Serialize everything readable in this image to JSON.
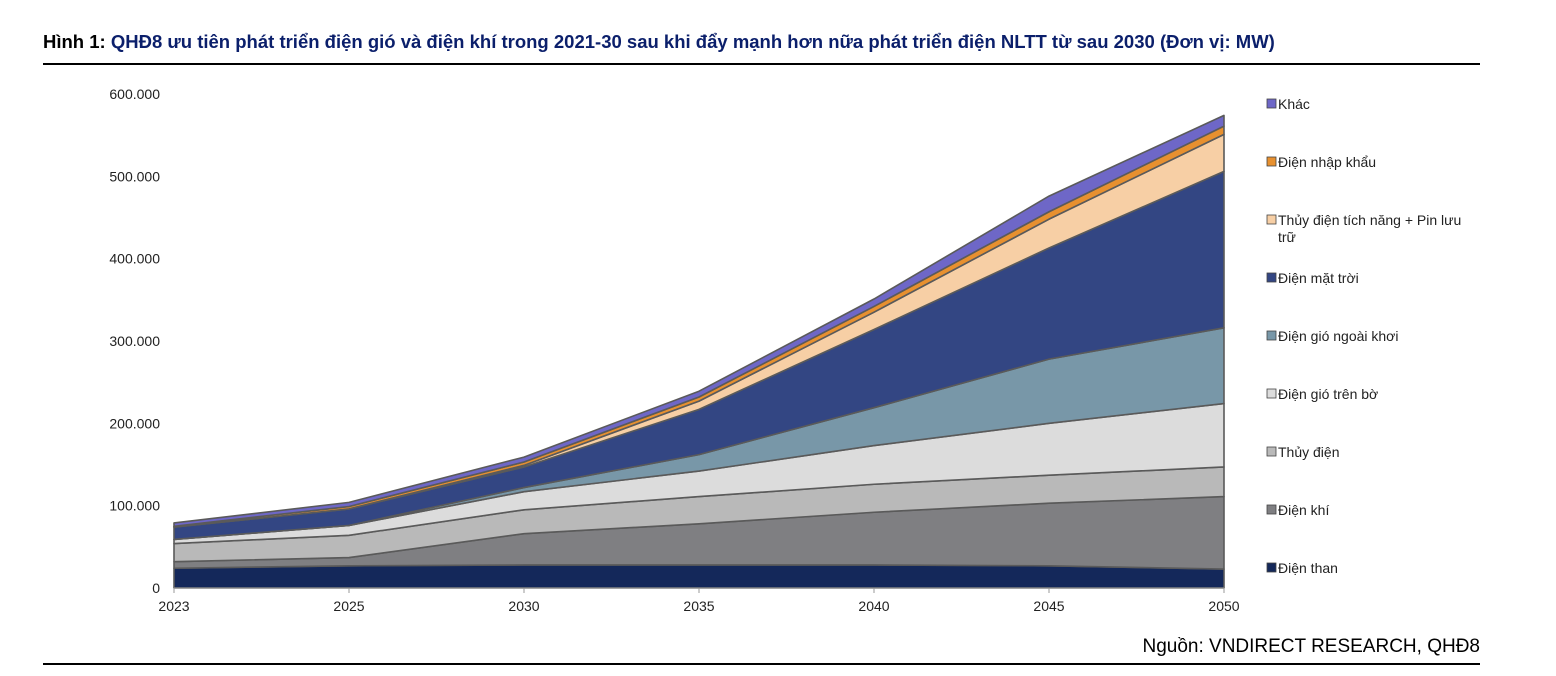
{
  "figure": {
    "label": "Hình 1:",
    "title": "QHĐ8 ưu tiên phát triển điện gió và điện khí trong 2021-30 sau khi đẩy mạnh hơn nữa phát triển điện NLTT từ sau 2030 (Đơn vị: MW)",
    "source": "Nguồn: VNDIRECT RESEARCH, QHĐ8"
  },
  "chart_data": {
    "type": "area",
    "stacked": true,
    "x": [
      "2023",
      "2025",
      "2030",
      "2035",
      "2040",
      "2045",
      "2050"
    ],
    "yticks": [
      "0",
      "100.000",
      "200.000",
      "300.000",
      "400.000",
      "500.000",
      "600.000"
    ],
    "ylim": [
      0,
      600000
    ],
    "legend_position": "right",
    "series": [
      {
        "name": "Điện than",
        "color": "#14285a",
        "values": [
          24000,
          27000,
          28000,
          28000,
          28000,
          27000,
          23000
        ]
      },
      {
        "name": "Điện khí",
        "color": "#7f7f82",
        "values": [
          8000,
          10000,
          38000,
          50000,
          64000,
          76000,
          88000
        ]
      },
      {
        "name": "Thủy điện",
        "color": "#b9b9b9",
        "values": [
          22000,
          27000,
          29000,
          33000,
          34000,
          34000,
          36000
        ]
      },
      {
        "name": "Điện gió trên bờ",
        "color": "#dcdcdc",
        "values": [
          5000,
          12000,
          22000,
          31000,
          47000,
          63000,
          77000
        ]
      },
      {
        "name": "Điện gió ngoài khơi",
        "color": "#7897a8",
        "values": [
          0,
          0,
          5000,
          20000,
          46000,
          78000,
          92000
        ]
      },
      {
        "name": "Điện mặt trời",
        "color": "#334683",
        "values": [
          15000,
          20000,
          25000,
          55000,
          95000,
          135000,
          190000
        ]
      },
      {
        "name": "Thủy điện tích năng + Pin lưu trữ",
        "color": "#f7cfa5",
        "values": [
          0,
          0,
          2000,
          10000,
          21000,
          35000,
          45000
        ]
      },
      {
        "name": "Điện nhập khẩu",
        "color": "#e7902f",
        "values": [
          1000,
          3000,
          4000,
          5000,
          7000,
          9000,
          10000
        ]
      },
      {
        "name": "Khác",
        "color": "#6e67c7",
        "values": [
          4000,
          5000,
          6000,
          7000,
          9000,
          19000,
          13000
        ]
      }
    ]
  }
}
